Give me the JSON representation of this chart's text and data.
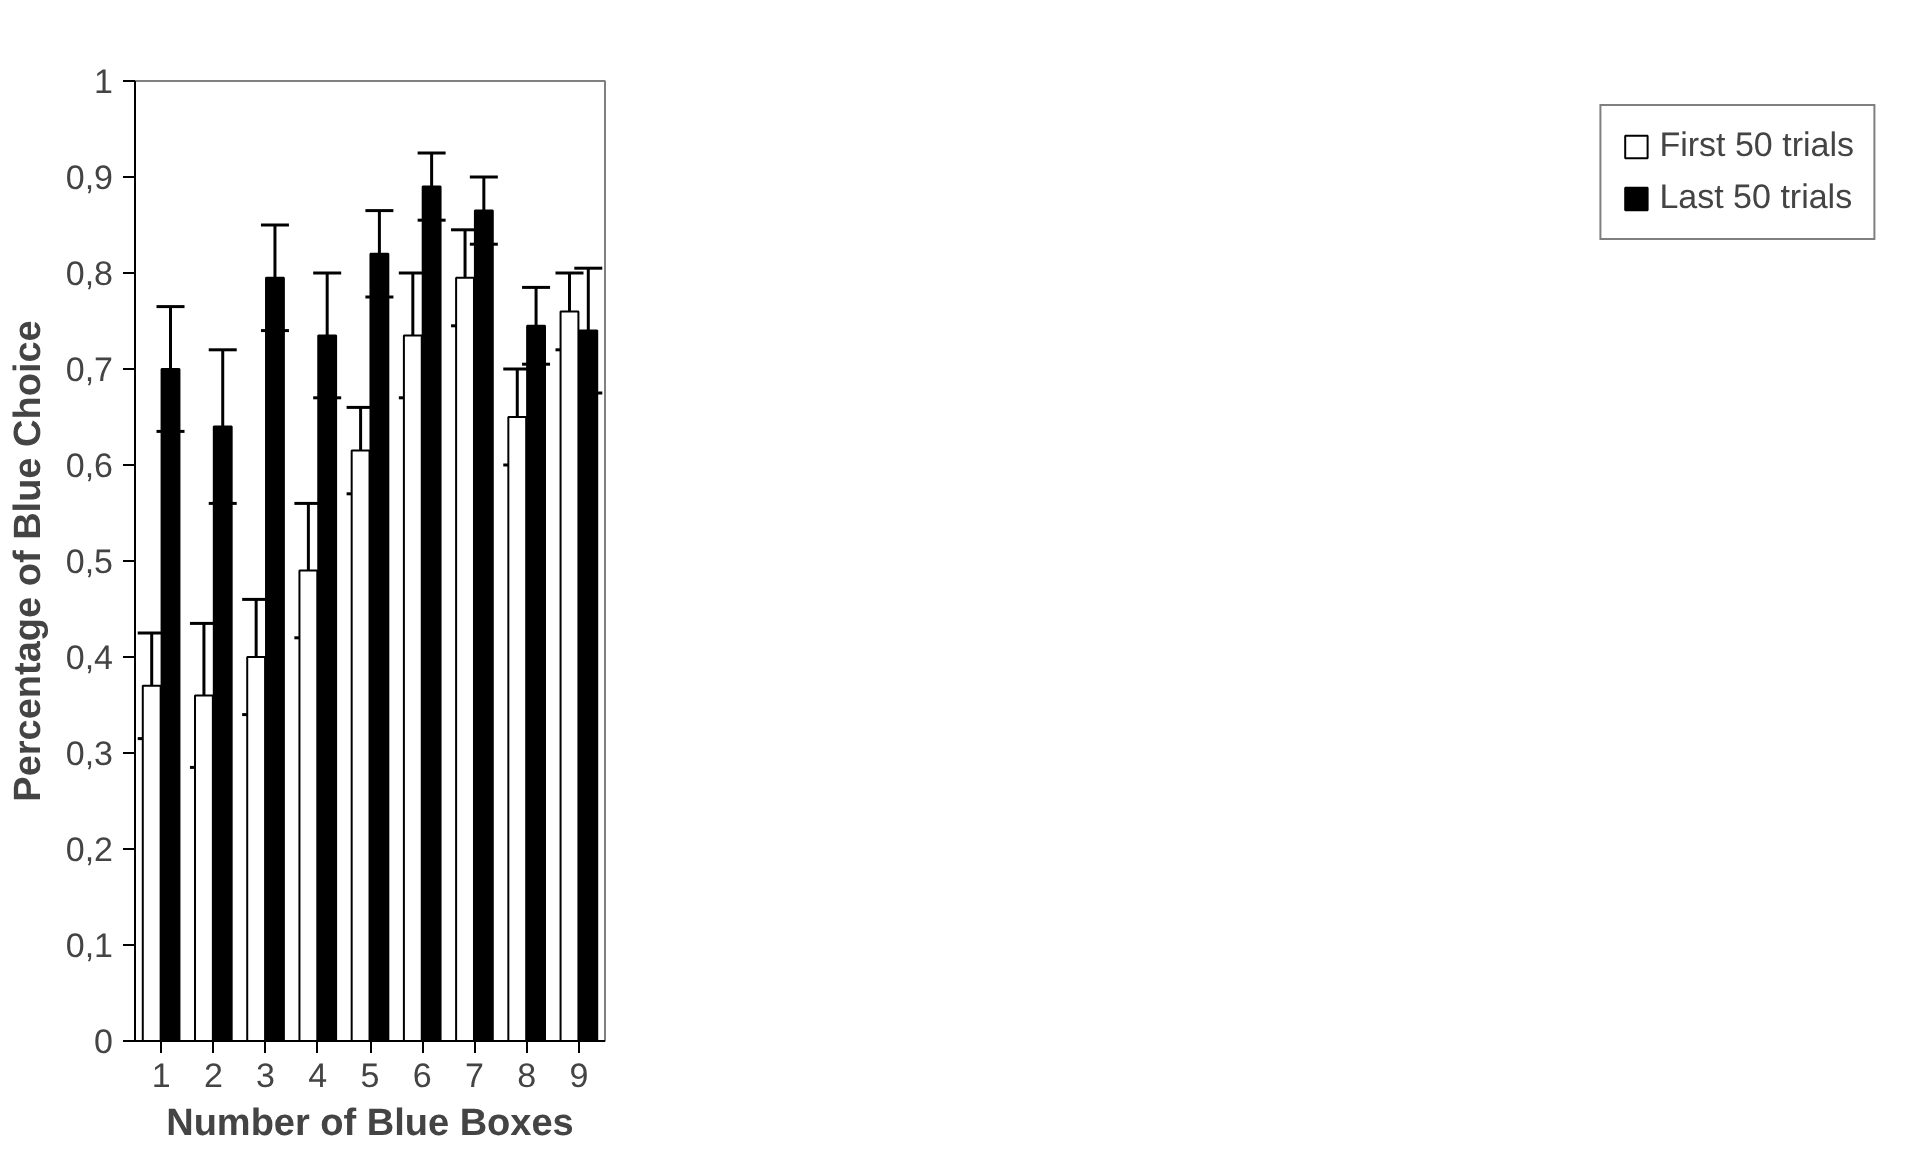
{
  "chart_data": {
    "type": "bar",
    "xlabel": "Number of Blue Boxes",
    "ylabel": "Percentage of Blue Choice",
    "categories": [
      "1",
      "2",
      "3",
      "4",
      "5",
      "6",
      "7",
      "8",
      "9"
    ],
    "series": [
      {
        "name": "First 50 trials",
        "color": "#ffffff",
        "values": [
          0.37,
          0.36,
          0.4,
          0.49,
          0.615,
          0.735,
          0.795,
          0.65,
          0.76
        ],
        "errors": [
          0.055,
          0.075,
          0.06,
          0.07,
          0.045,
          0.065,
          0.05,
          0.05,
          0.04
        ]
      },
      {
        "name": "Last 50 trials",
        "color": "#000000",
        "values": [
          0.7,
          0.64,
          0.795,
          0.735,
          0.82,
          0.89,
          0.865,
          0.745,
          0.74
        ],
        "errors": [
          0.065,
          0.08,
          0.055,
          0.065,
          0.045,
          0.035,
          0.035,
          0.04,
          0.065
        ]
      }
    ],
    "ylim": [
      0,
      1
    ],
    "yticks": [
      0,
      {
        "value": 0.1,
        "label": "0,1"
      },
      {
        "value": 0.2,
        "label": "0,2"
      },
      {
        "value": 0.3,
        "label": "0,3"
      },
      {
        "value": 0.4,
        "label": "0,4"
      },
      {
        "value": 0.5,
        "label": "0,5"
      },
      {
        "value": 0.6,
        "label": "0,6"
      },
      {
        "value": 0.7,
        "label": "0,7"
      },
      {
        "value": 0.8,
        "label": "0,8"
      },
      {
        "value": 0.9,
        "label": "0,9"
      },
      1
    ],
    "grid": false,
    "legend": "right"
  }
}
